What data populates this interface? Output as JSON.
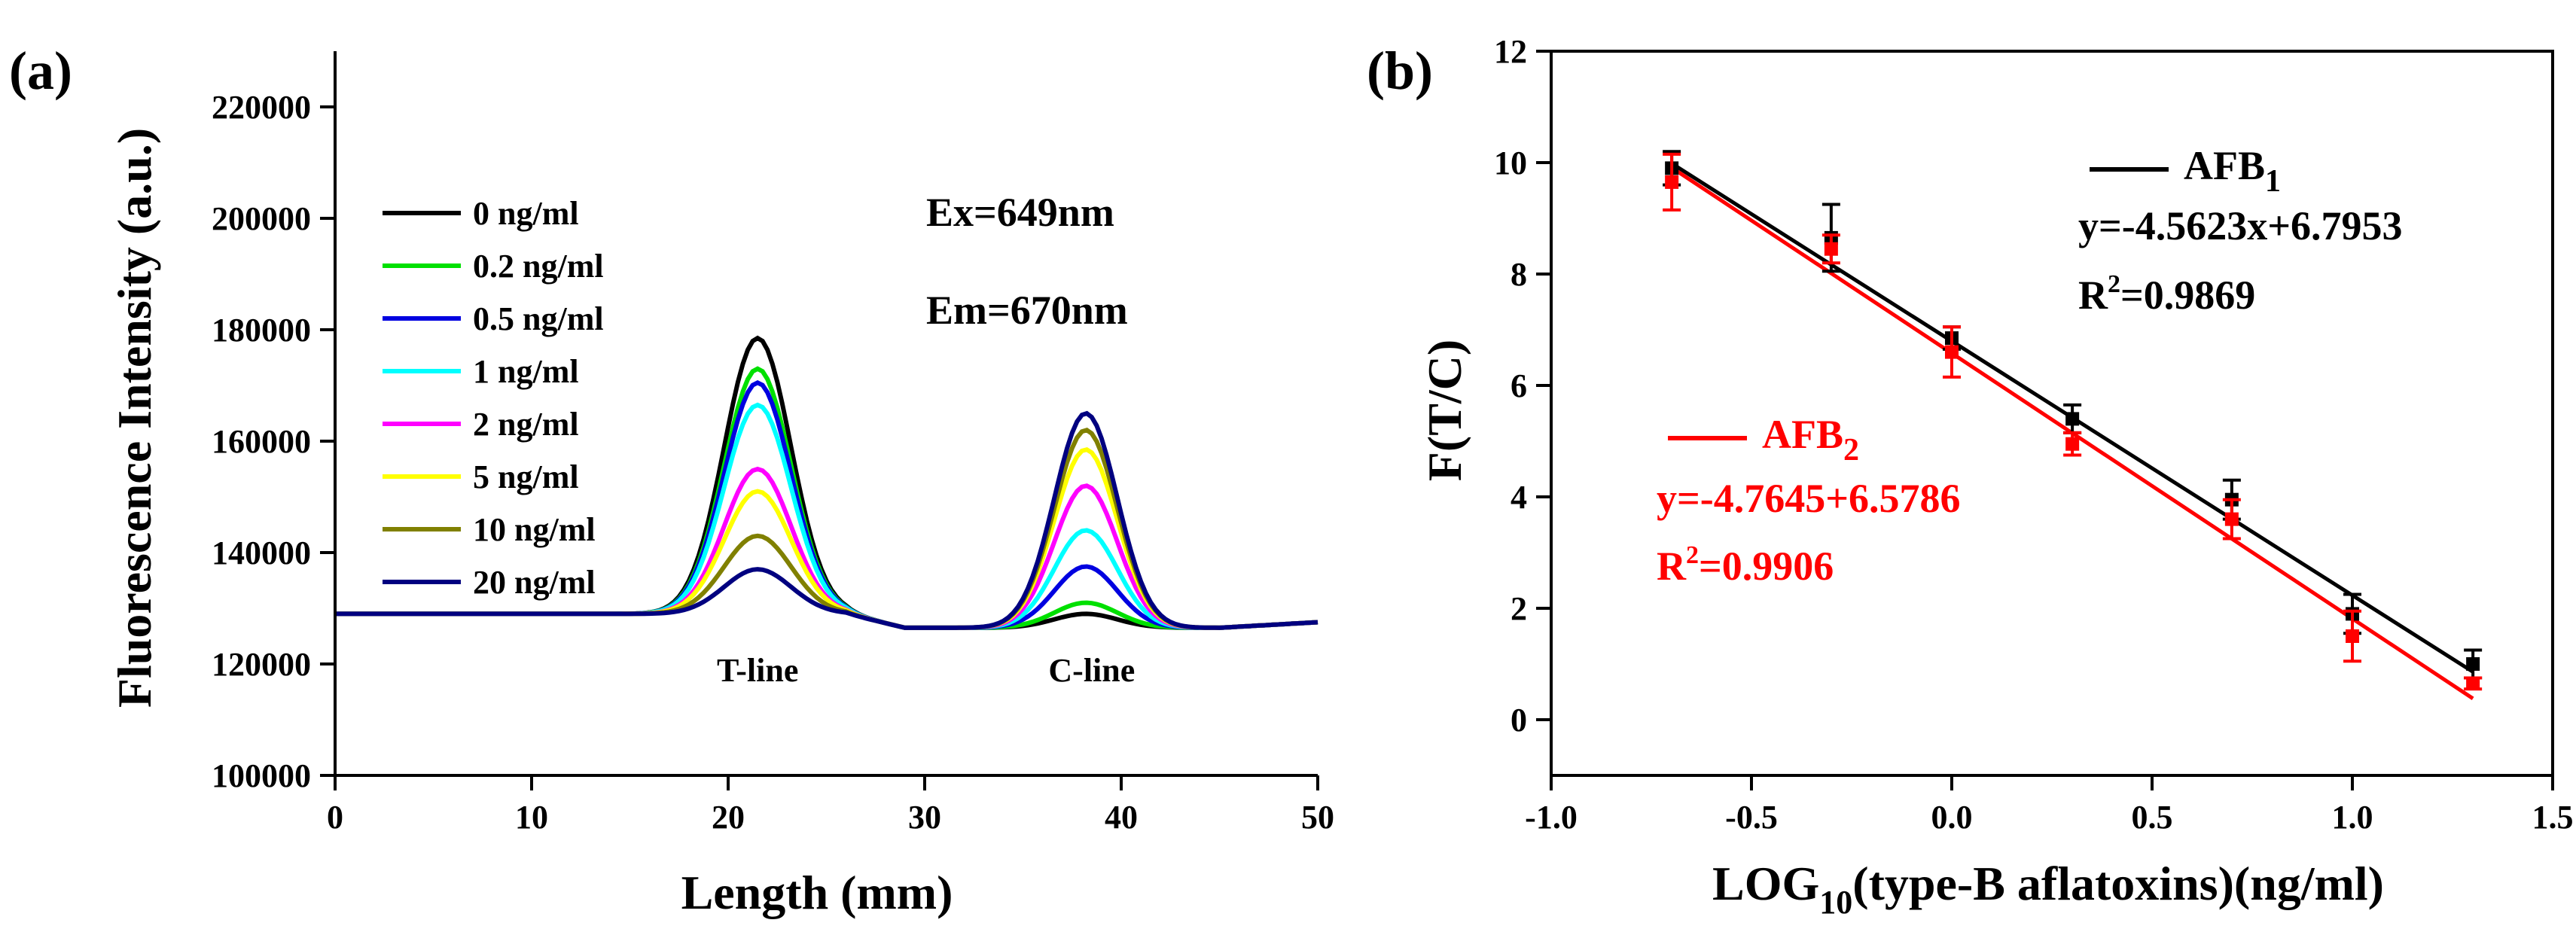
{
  "chart_data": [
    {
      "type": "line",
      "panel_label": "(a)",
      "xlabel": "Length (mm)",
      "ylabel": "Fluorescence Intensity (a.u.)",
      "xlim": [
        0,
        50
      ],
      "ylim": [
        100000,
        230000
      ],
      "x_ticks": [
        0,
        10,
        20,
        30,
        40,
        50
      ],
      "y_ticks": [
        100000,
        120000,
        140000,
        160000,
        180000,
        200000,
        220000
      ],
      "annotations": [
        "Ex=649nm",
        "Em=670nm"
      ],
      "peak_labels": [
        {
          "text": "T-line",
          "x": 21.5
        },
        {
          "text": "C-line",
          "x": 38.5
        }
      ],
      "legend_position": "upper-left",
      "model": {
        "baseline_left": 129000,
        "baseline_mid": 126500,
        "baseline_right": 127500,
        "t_center": 21.5,
        "t_sigma": 1.7,
        "c_center": 38.2,
        "c_sigma": 1.6
      },
      "series": [
        {
          "name": "0 ng/ml",
          "color": "#000000",
          "t_peak": 178500,
          "c_peak": 129000
        },
        {
          "name": "0.2 ng/ml",
          "color": "#00e000",
          "t_peak": 173000,
          "c_peak": 131000
        },
        {
          "name": "0.5 ng/ml",
          "color": "#0000e0",
          "t_peak": 170500,
          "c_peak": 137500
        },
        {
          "name": "1 ng/ml",
          "color": "#00ffff",
          "t_peak": 166500,
          "c_peak": 144000
        },
        {
          "name": "2 ng/ml",
          "color": "#ff00ff",
          "t_peak": 155000,
          "c_peak": 152000
        },
        {
          "name": "5 ng/ml",
          "color": "#ffff00",
          "t_peak": 151000,
          "c_peak": 158500
        },
        {
          "name": "10 ng/ml",
          "color": "#808000",
          "t_peak": 143000,
          "c_peak": 162000
        },
        {
          "name": "20 ng/ml",
          "color": "#000080",
          "t_peak": 137000,
          "c_peak": 165000
        }
      ]
    },
    {
      "type": "scatter",
      "panel_label": "(b)",
      "xlabel_pre": "LOG",
      "xlabel_sub": "10",
      "xlabel_post": "(type-B aflatoxins)(ng/ml)",
      "ylabel": "F(T/C)",
      "xlim": [
        -1.0,
        1.5
      ],
      "ylim": [
        -1,
        12
      ],
      "x_ticks": [
        -1.0,
        -0.5,
        0.0,
        0.5,
        1.0,
        1.5
      ],
      "x_tick_labels": [
        "-1.0",
        "-0.5",
        "0.0",
        "0.5",
        "1.0",
        "1.5"
      ],
      "y_ticks": [
        0,
        2,
        4,
        6,
        8,
        10,
        12
      ],
      "series": [
        {
          "name_main": "AFB",
          "name_sub": "1",
          "color": "#000000",
          "equation": "y=-4.5623x+6.7953",
          "r2_value": "=0.9869",
          "fit": {
            "slope": -4.5623,
            "intercept": 6.7953
          },
          "x": [
            -0.699,
            -0.301,
            0.0,
            0.301,
            0.699,
            1.0,
            1.301
          ],
          "y": [
            9.9,
            8.65,
            6.85,
            5.4,
            3.95,
            1.9,
            1.0
          ],
          "err": [
            0.3,
            0.6,
            0.2,
            0.25,
            0.35,
            0.35,
            0.25
          ]
        },
        {
          "name_main": "AFB",
          "name_sub": "2",
          "color": "#ff0000",
          "equation": "y=-4.7645+6.5786",
          "r2_value": "=0.9906",
          "fit": {
            "slope": -4.7645,
            "intercept": 6.5786
          },
          "x": [
            -0.699,
            -0.301,
            0.0,
            0.301,
            0.699,
            1.0,
            1.301
          ],
          "y": [
            9.65,
            8.45,
            6.6,
            4.95,
            3.6,
            1.5,
            0.65
          ],
          "err": [
            0.5,
            0.25,
            0.45,
            0.2,
            0.35,
            0.45,
            0.1
          ]
        }
      ],
      "r2_label": "R"
    }
  ]
}
